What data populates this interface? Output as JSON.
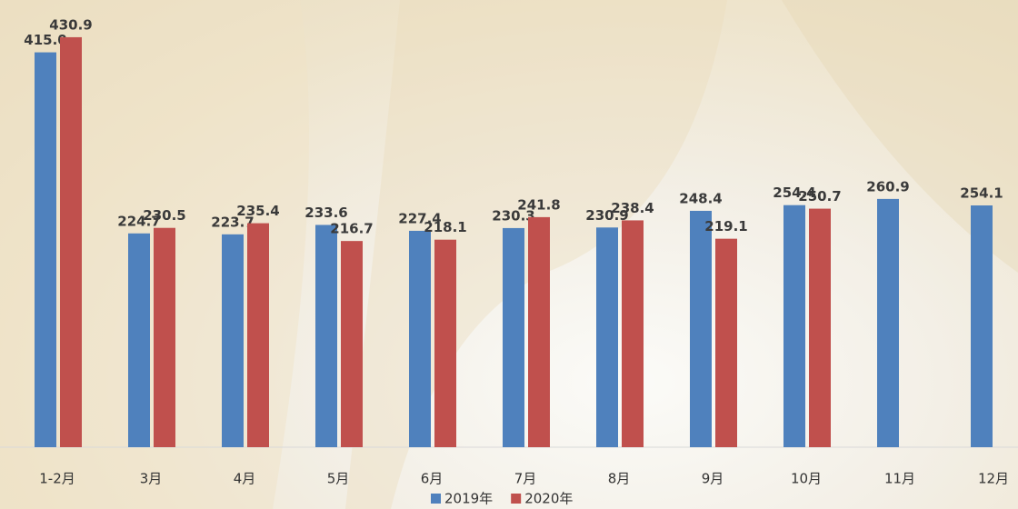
{
  "chart_data": {
    "type": "bar",
    "categories": [
      "1-2月",
      "3月",
      "4月",
      "5月",
      "6月",
      "7月",
      "8月",
      "9月",
      "10月",
      "11月",
      "12月"
    ],
    "series": [
      {
        "name": "2019年",
        "color": "#4f81bd",
        "values": [
          415.0,
          224.7,
          223.7,
          233.6,
          227.4,
          230.3,
          230.9,
          248.4,
          254.4,
          260.9,
          254.1
        ],
        "value_labels": [
          "415.0",
          "224.7",
          "223.7",
          "233.6",
          "227.4",
          "230.3",
          "230.9",
          "248.4",
          "254.4",
          "260.9",
          "254.1"
        ]
      },
      {
        "name": "2020年",
        "color": "#c0504d",
        "values": [
          430.9,
          230.5,
          235.4,
          216.7,
          218.1,
          241.8,
          238.4,
          219.1,
          250.7,
          null,
          null
        ],
        "value_labels": [
          "430.9",
          "230.5",
          "235.4",
          "216.7",
          "218.1",
          "241.8",
          "238.4",
          "219.1",
          "250.7",
          null,
          null
        ]
      }
    ],
    "ylim": [
      0,
      470
    ],
    "legend": "bottom"
  }
}
